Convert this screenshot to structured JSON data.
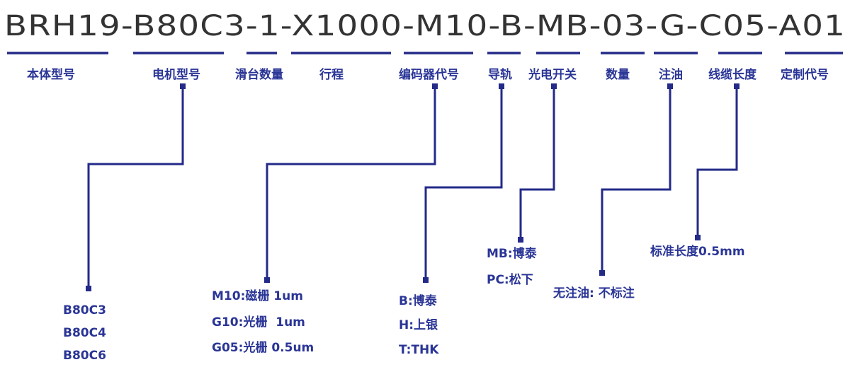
{
  "model_code": "BRH19-B80C3-1-X1000-M10-B-MB-03-G-C05-A01",
  "segments": [
    {
      "code": "BRH19",
      "label": "本体型号"
    },
    {
      "code": "B80C3",
      "label": "电机型号",
      "options": [
        "B80C3",
        "B80C4",
        "B80C6"
      ]
    },
    {
      "code": "1",
      "label": "滑台数量"
    },
    {
      "code": "X1000",
      "label": "行程"
    },
    {
      "code": "M10",
      "label": "编码器代号",
      "options": [
        "M10:磁栅 1um",
        "G10:光栅  1um",
        "G05:光栅 0.5um"
      ]
    },
    {
      "code": "B",
      "label": "导轨",
      "options": [
        "B:博泰",
        "H:上银",
        "T:THK"
      ]
    },
    {
      "code": "MB",
      "label": "光电开关",
      "options": [
        "MB:博泰",
        "PC:松下"
      ]
    },
    {
      "code": "03",
      "label": "数量"
    },
    {
      "code": "G",
      "label": "注油",
      "options": [
        "无注油: 不标注"
      ]
    },
    {
      "code": "C05",
      "label": "线缆长度",
      "options": [
        "标准长度0.5mm"
      ]
    },
    {
      "code": "A01",
      "label": "定制代号"
    }
  ],
  "colors": {
    "line": "#232a88",
    "label": "#2a3596",
    "code": "#333333"
  }
}
